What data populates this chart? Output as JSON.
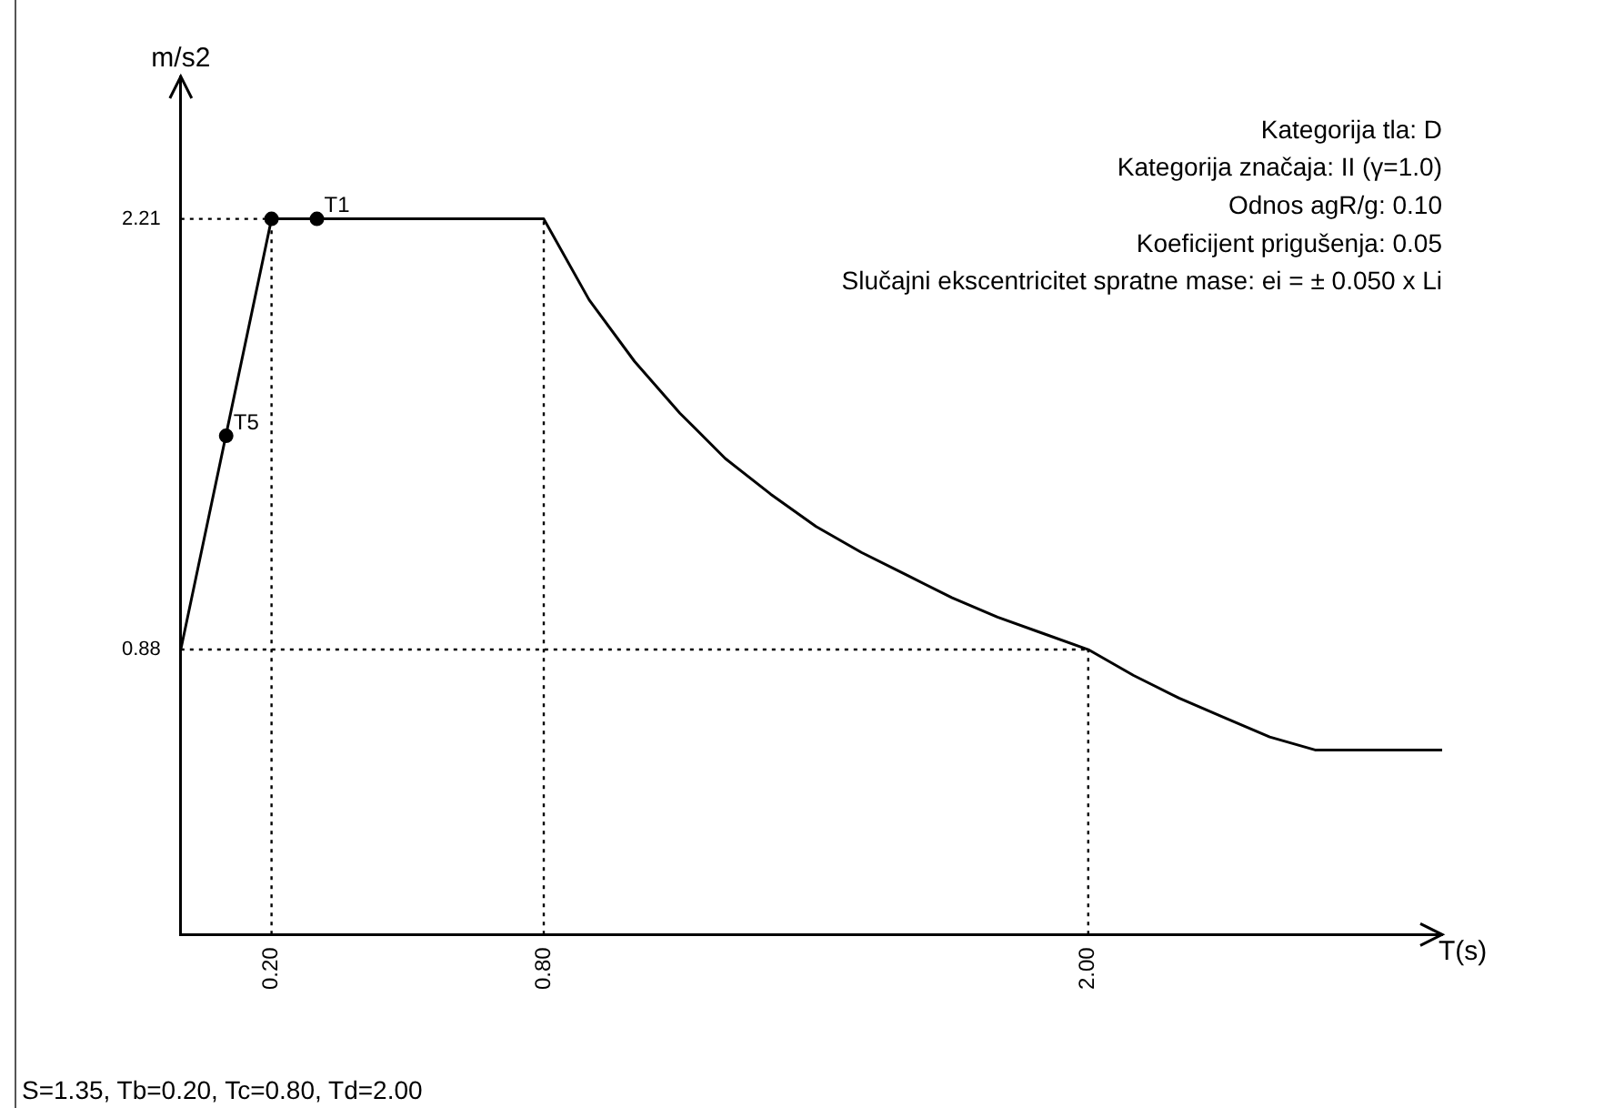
{
  "chart_data": {
    "type": "line",
    "xlabel": "T(s)",
    "ylabel": "m/s2",
    "xlim": [
      0,
      2.78
    ],
    "ylim": [
      0,
      2.65
    ],
    "xticks": [
      {
        "value": 0.2,
        "label": "0.20"
      },
      {
        "value": 0.8,
        "label": "0.80"
      },
      {
        "value": 2.0,
        "label": "2.00"
      }
    ],
    "yticks": [
      {
        "value": 0.88,
        "label": "0.88"
      },
      {
        "value": 2.21,
        "label": "2.21"
      }
    ],
    "series": [
      {
        "color": "#000000",
        "marker": "none",
        "x": [
          0,
          0.2,
          0.8,
          0.9,
          1.0,
          1.1,
          1.2,
          1.3,
          1.4,
          1.5,
          1.6,
          1.7,
          1.8,
          1.9,
          2.0,
          2.1,
          2.2,
          2.3,
          2.4,
          2.5,
          2.78
        ],
        "values": [
          0.88,
          2.21,
          2.21,
          1.96,
          1.77,
          1.61,
          1.47,
          1.36,
          1.26,
          1.18,
          1.11,
          1.04,
          0.98,
          0.93,
          0.88,
          0.8,
          0.73,
          0.67,
          0.61,
          0.57,
          0.57
        ]
      },
      {
        "type": "scatter",
        "color": "#000000",
        "marker": "circle",
        "x": [
          0.1,
          0.2,
          0.3
        ],
        "values": [
          1.54,
          2.21,
          2.21
        ]
      }
    ],
    "ref_lines": [
      {
        "axis": "x",
        "value": 0.2,
        "line_style": "dotted",
        "color": "#000000"
      },
      {
        "axis": "x",
        "value": 0.8,
        "line_style": "dotted",
        "color": "#000000"
      },
      {
        "axis": "x",
        "value": 2.0,
        "line_style": "dotted",
        "color": "#000000"
      },
      {
        "axis": "y",
        "value": 2.21,
        "line_style": "dotted",
        "color": "#000000"
      },
      {
        "axis": "y",
        "value": 0.88,
        "line_style": "dotted",
        "color": "#000000"
      }
    ],
    "annotations": [
      {
        "text": "T5",
        "x": 0.1,
        "y": 1.54
      },
      {
        "text": "T1",
        "x": 0.3,
        "y": 2.21
      },
      "Kategorija tla: D",
      "Kategorija značaja: II (γ=1.0)",
      "Odnos agR/g: 0.10",
      "Koeficijent prigušenja: 0.05",
      "Slučajni ekscentricitet spratne mase: ei = ± 0.050 x Li",
      "S=1.35, Tb=0.20, Tc=0.80, Td=2.00"
    ]
  }
}
